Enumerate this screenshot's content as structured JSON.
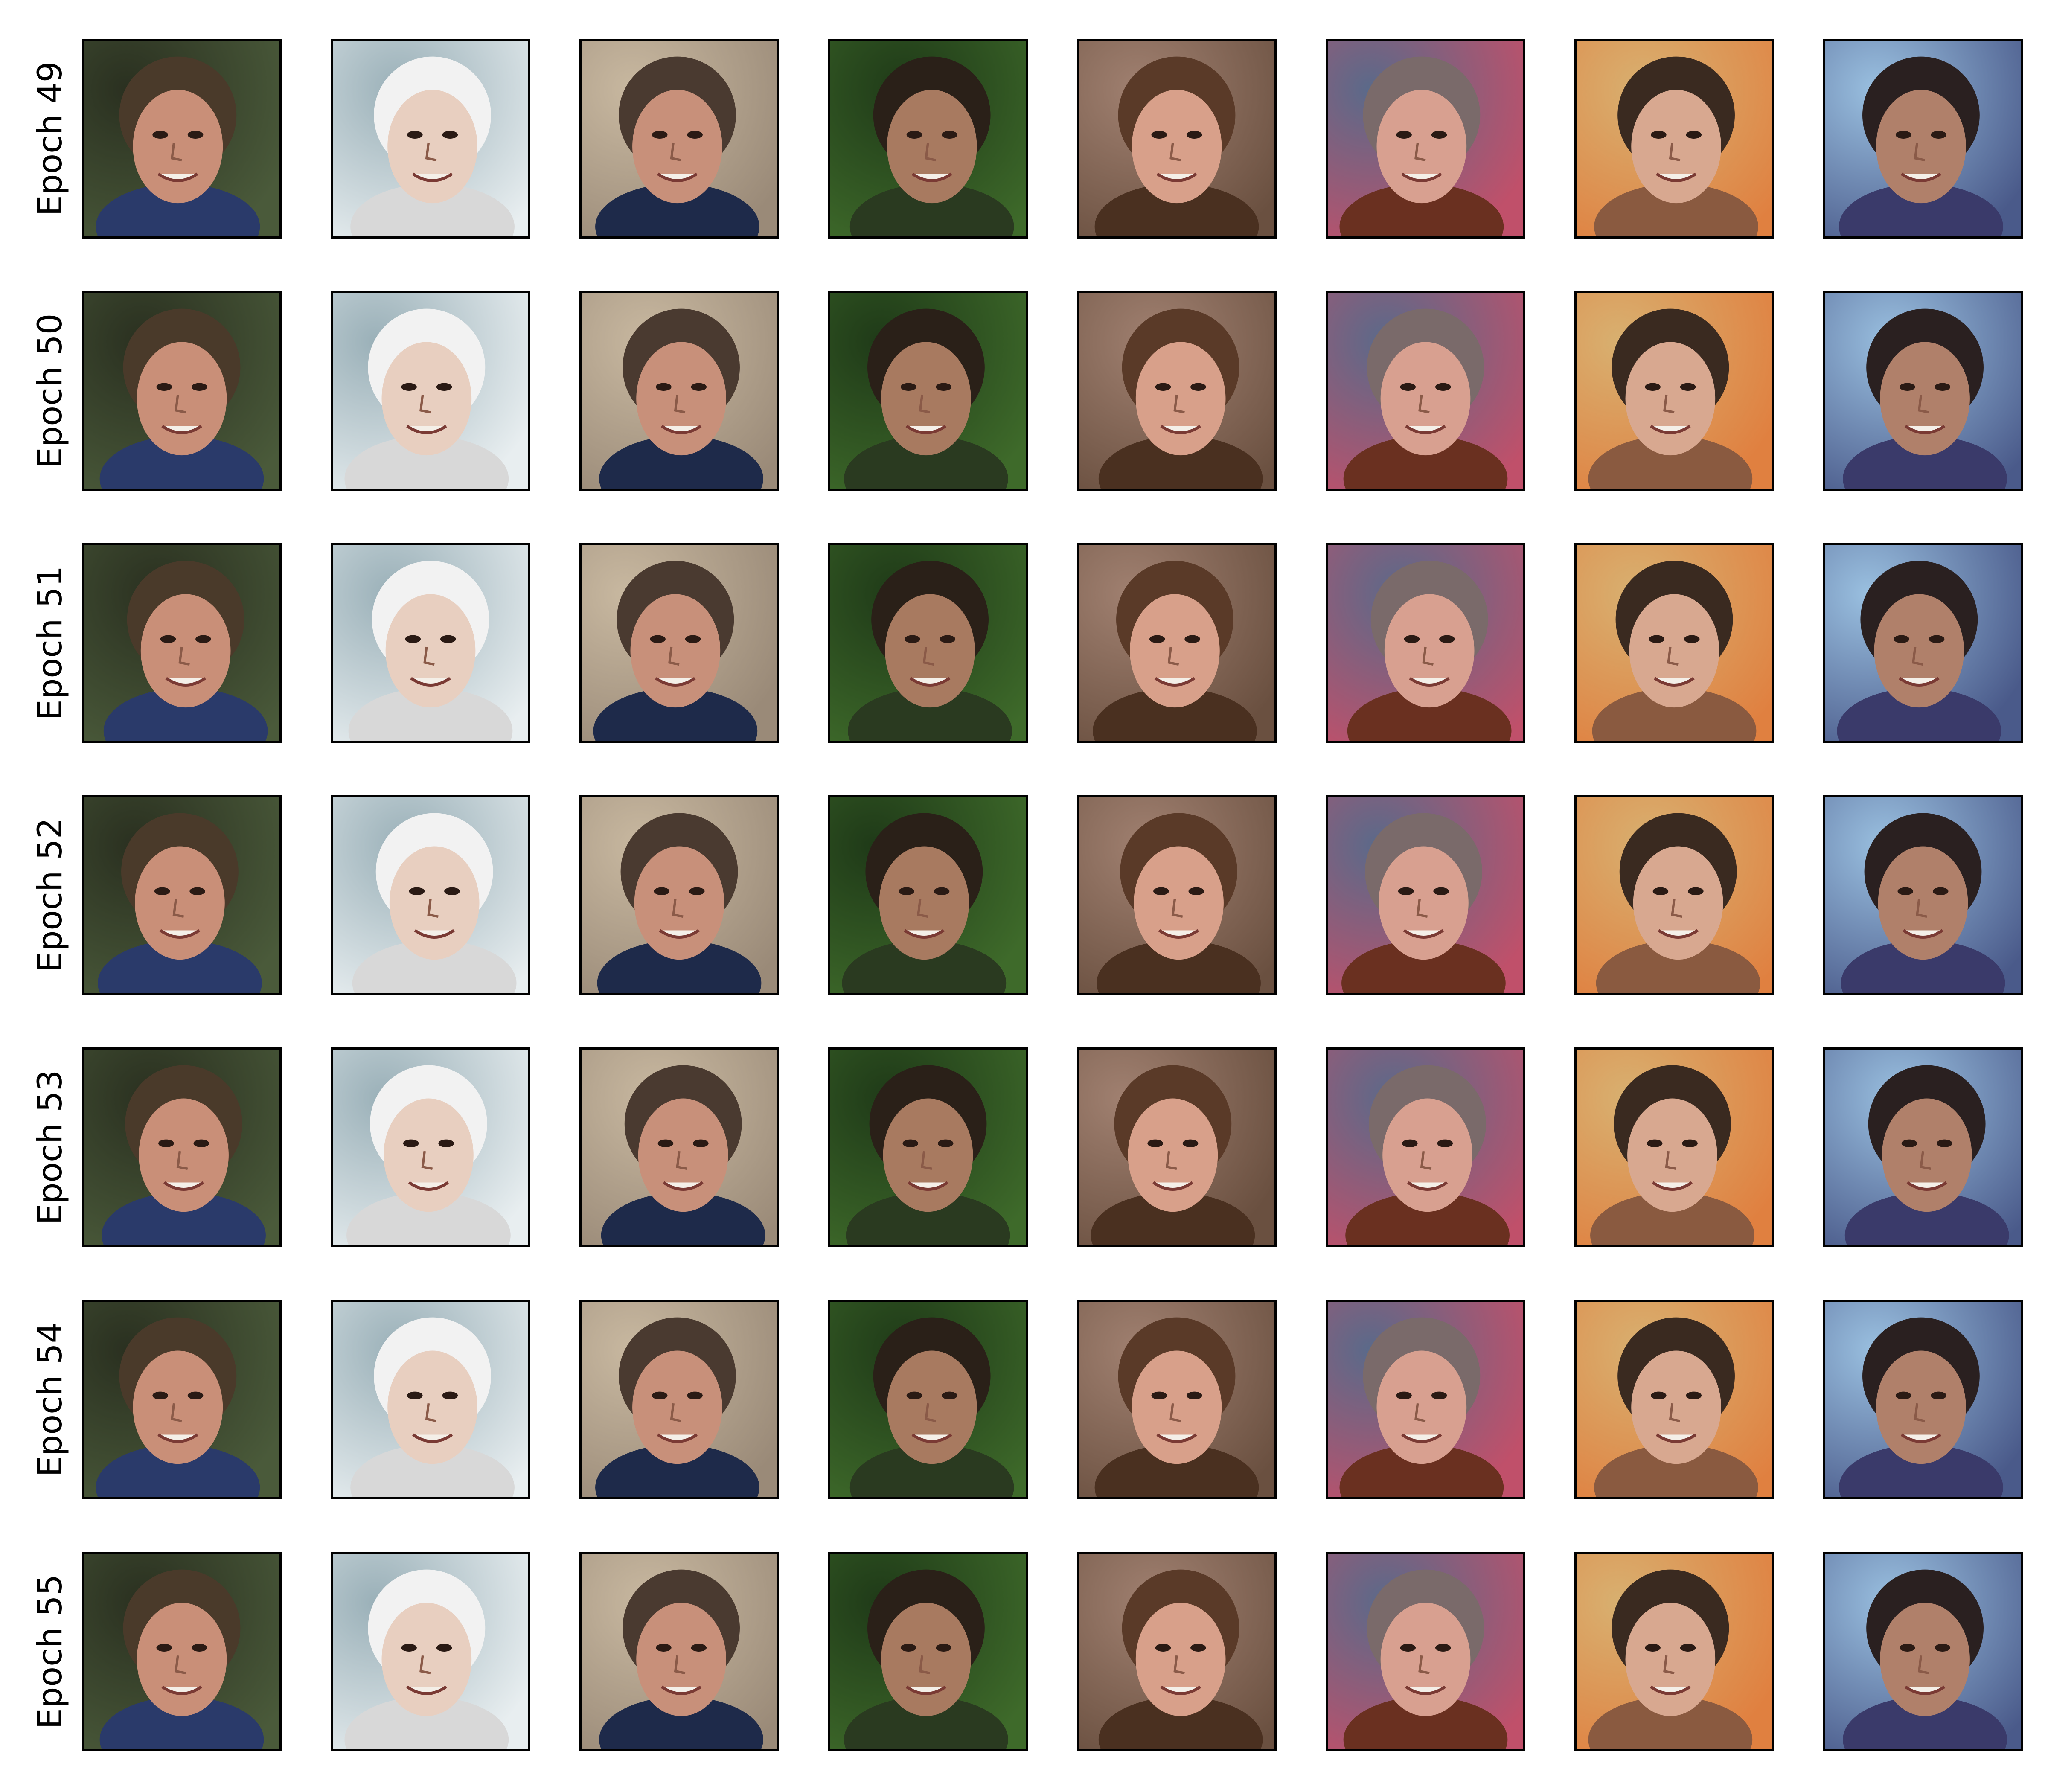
{
  "figure": {
    "row_labels": [
      "Epoch 49",
      "Epoch 50",
      "Epoch 51",
      "Epoch 52",
      "Epoch 53",
      "Epoch 54",
      "Epoch 55"
    ],
    "columns": 8
  },
  "samples": [
    {
      "bg": "#4a5a3a",
      "bg2": "#2a3020",
      "skin": "#c98f78",
      "hair": "#4a3a2a",
      "cloth": "#2a3a6a"
    },
    {
      "bg": "#e8eef0",
      "bg2": "#9ab0b8",
      "skin": "#e8cfc0",
      "hair": "#f2f2f2",
      "cloth": "#d8d8d8"
    },
    {
      "bg": "#9a8a78",
      "bg2": "#c8b8a0",
      "skin": "#c8907a",
      "hair": "#4a3a30",
      "cloth": "#1e2a4a"
    },
    {
      "bg": "#3e6a2a",
      "bg2": "#1f3a18",
      "skin": "#a87a60",
      "hair": "#2a2018",
      "cloth": "#2a3a20"
    },
    {
      "bg": "#6a5040",
      "bg2": "#a08070",
      "skin": "#d8a08a",
      "hair": "#5a3a28",
      "cloth": "#4a3020"
    },
    {
      "bg": "#c0506a",
      "bg2": "#5a6a8a",
      "skin": "#d8a090",
      "hair": "#7a6a6a",
      "cloth": "#6a3020"
    },
    {
      "bg": "#e08040",
      "bg2": "#d8b070",
      "skin": "#d8a890",
      "hair": "#3a2a20",
      "cloth": "#8a5a40"
    },
    {
      "bg": "#4a5a8a",
      "bg2": "#9ac0e0",
      "skin": "#b0806a",
      "hair": "#2a2020",
      "cloth": "#3a3a6a"
    }
  ]
}
